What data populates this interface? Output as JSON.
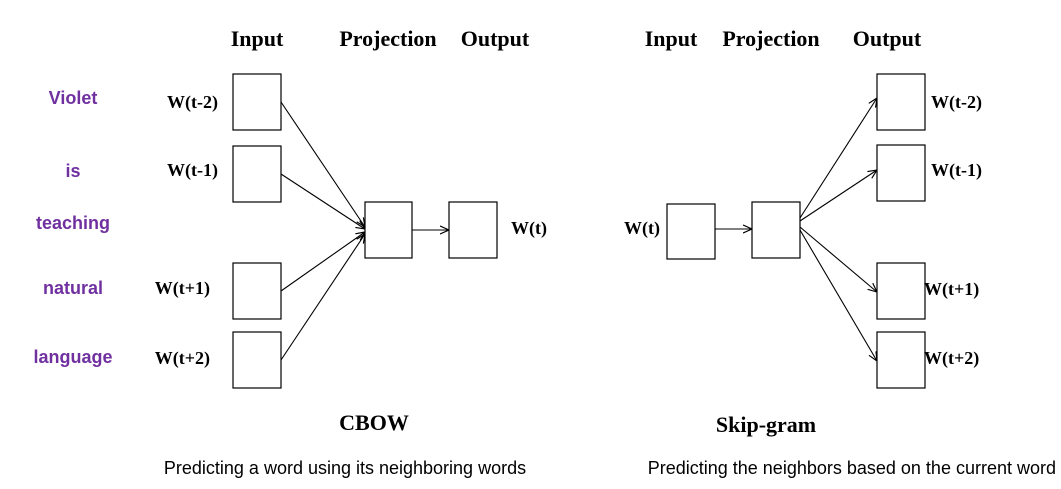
{
  "cbow": {
    "headers": {
      "input": "Input",
      "projection": "Projection",
      "output": "Output"
    },
    "context_words": [
      "Violet",
      "is",
      "teaching",
      "natural",
      "language"
    ],
    "input_labels": [
      "W(t-2)",
      "W(t-1)",
      "W(t+1)",
      "W(t+2)"
    ],
    "output_label": "W(t)",
    "title": "CBOW",
    "caption": "Predicting a word using its neighboring words"
  },
  "skipgram": {
    "headers": {
      "input": "Input",
      "projection": "Projection",
      "output": "Output"
    },
    "input_label": "W(t)",
    "output_labels": [
      "W(t-2)",
      "W(t-1)",
      "W(t+1)",
      "W(t+2)"
    ],
    "title": "Skip-gram",
    "caption": "Predicting the neighbors based on the current word"
  },
  "colors": {
    "context_word": "#7030a0",
    "stroke": "#000000"
  }
}
